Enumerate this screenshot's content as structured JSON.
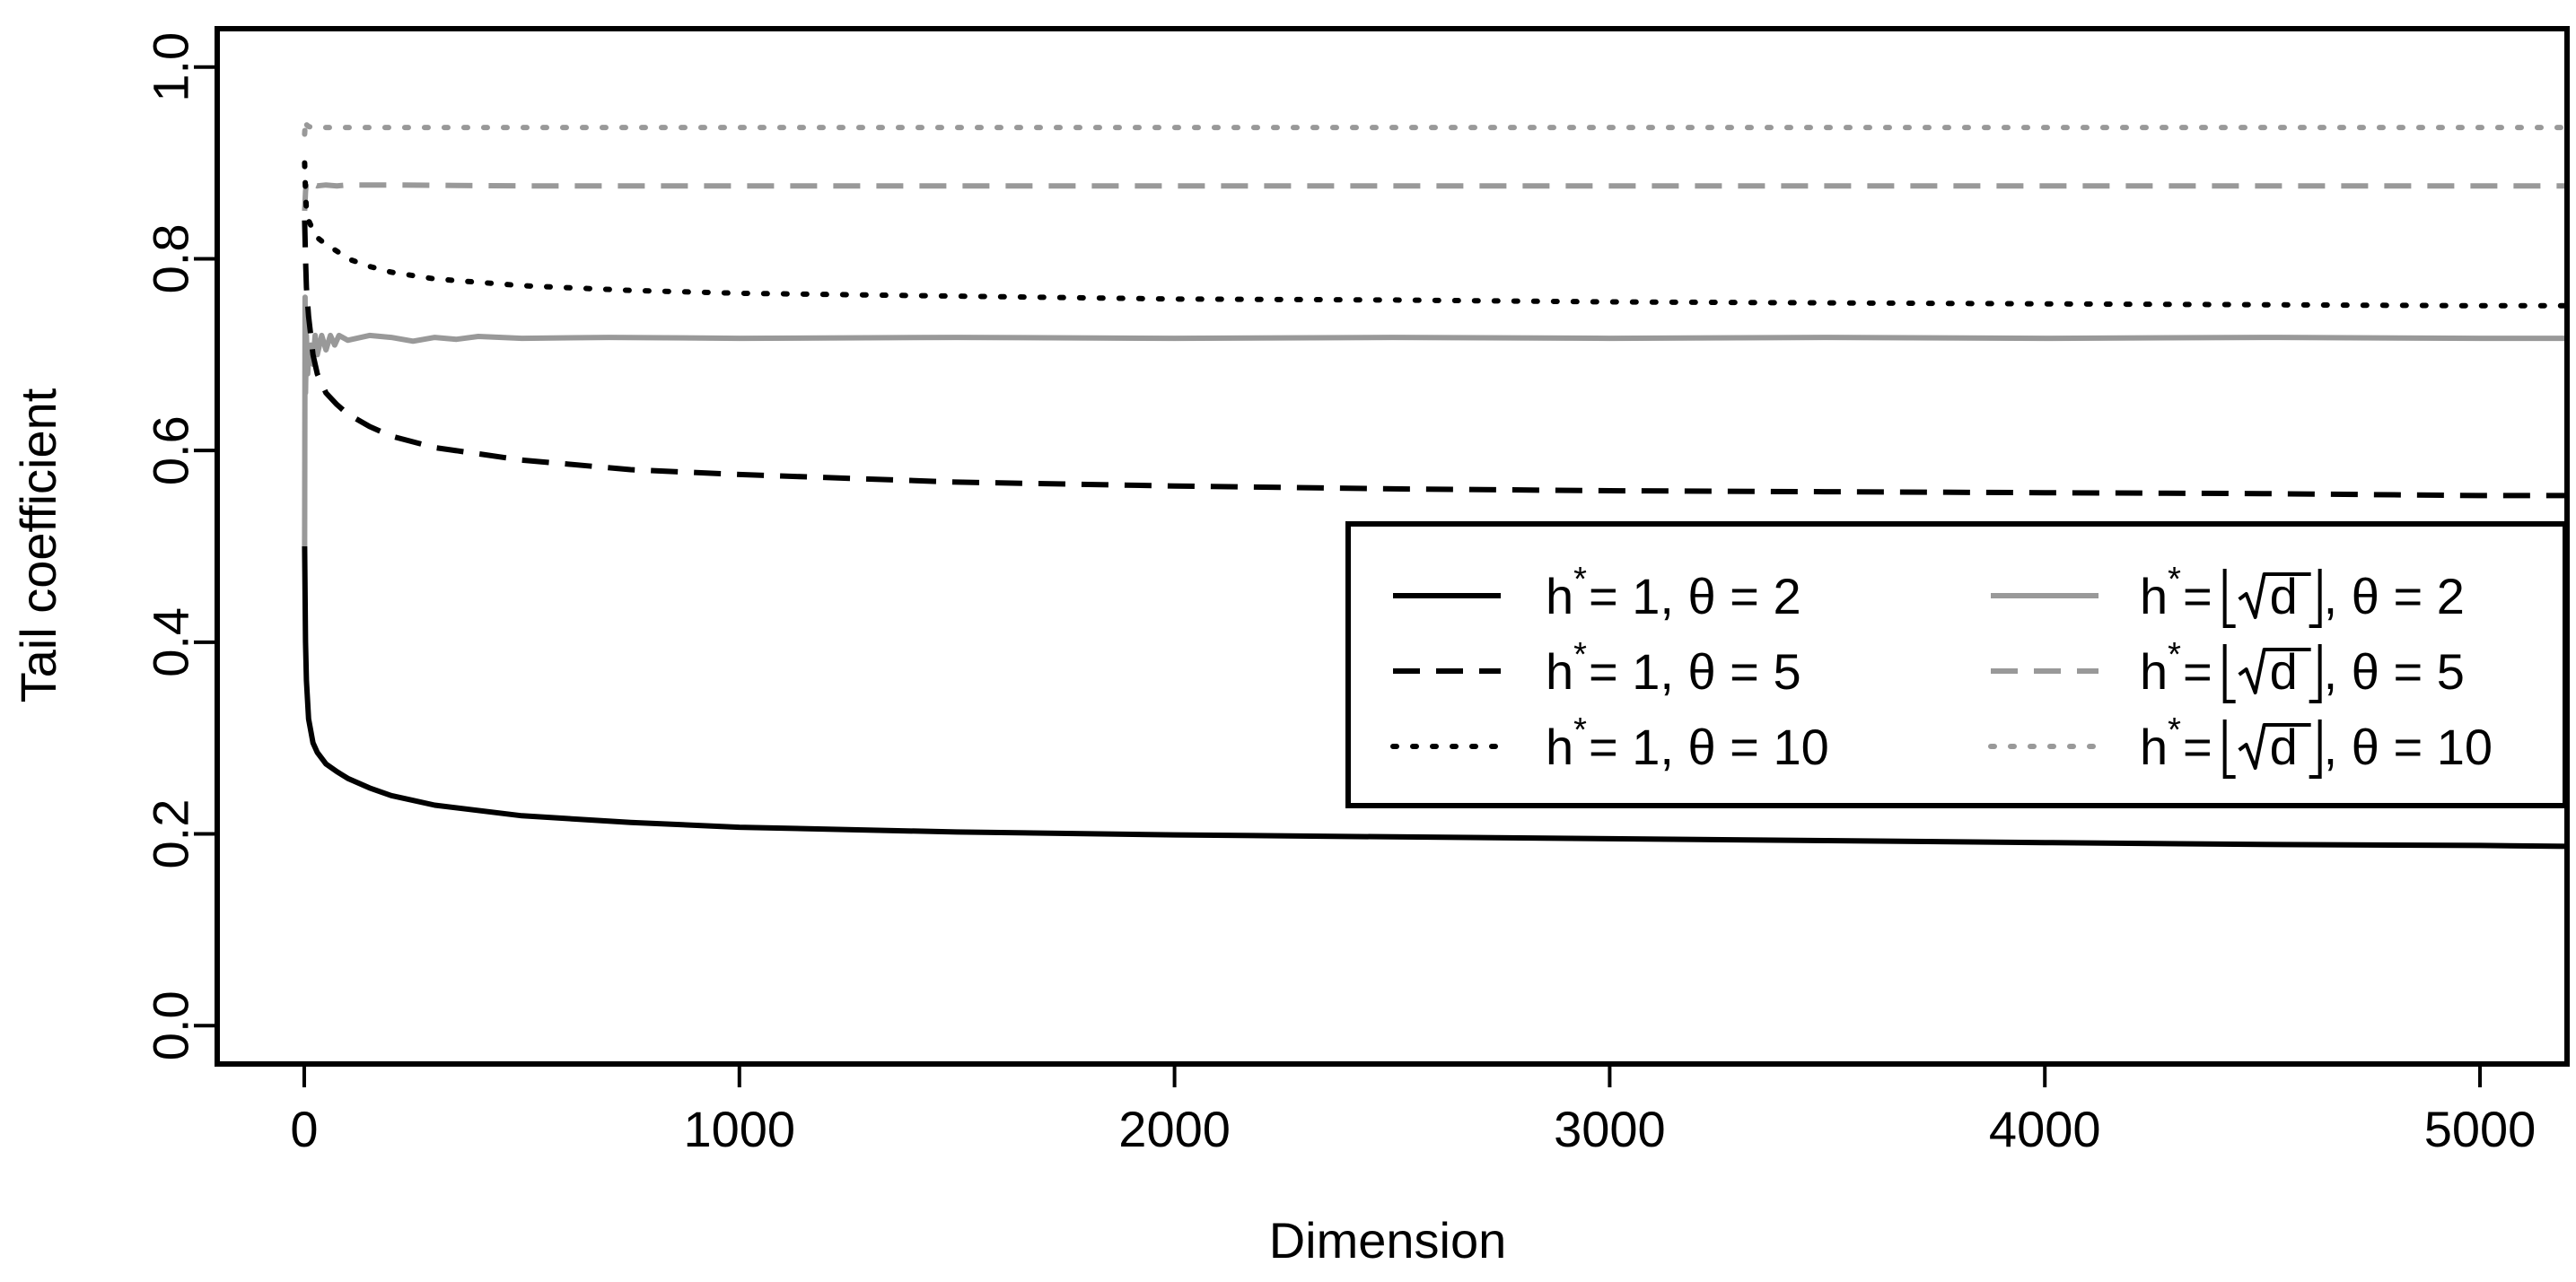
{
  "chart_data": {
    "type": "line",
    "title": "",
    "xlabel": "Dimension",
    "ylabel": "Tail coefficient",
    "xlim": [
      -200,
      5200
    ],
    "ylim": [
      -0.04,
      1.04
    ],
    "xticks": [
      0,
      1000,
      2000,
      3000,
      4000,
      5000
    ],
    "xtick_labels": [
      "0",
      "1000",
      "2000",
      "3000",
      "4000",
      "5000"
    ],
    "yticks": [
      0.0,
      0.2,
      0.4,
      0.6,
      0.8,
      1.0
    ],
    "ytick_labels": [
      "0.0",
      "0.2",
      "0.4",
      "0.6",
      "0.8",
      "1.0"
    ],
    "grid": false,
    "legend_placement": "right",
    "legend_columns": 2,
    "series": [
      {
        "name": "h* = 1, θ = 2",
        "label_parts": {
          "h": "h",
          "sup": "*",
          "eq": "= 1, θ = 2",
          "sqrt": false
        },
        "color": "#000000",
        "dash": "solid",
        "x": [
          1,
          3,
          5,
          10,
          20,
          30,
          50,
          75,
          100,
          150,
          200,
          300,
          500,
          750,
          1000,
          1500,
          2000,
          2500,
          3000,
          3500,
          4000,
          4500,
          5000,
          5200
        ],
        "y": [
          0.5,
          0.4,
          0.36,
          0.32,
          0.295,
          0.285,
          0.273,
          0.265,
          0.258,
          0.248,
          0.24,
          0.23,
          0.219,
          0.212,
          0.207,
          0.202,
          0.199,
          0.197,
          0.195,
          0.193,
          0.191,
          0.189,
          0.188,
          0.187
        ]
      },
      {
        "name": "h* = 1, θ = 5",
        "label_parts": {
          "h": "h",
          "sup": "*",
          "eq": "= 1, θ = 5",
          "sqrt": false
        },
        "color": "#000000",
        "dash": "dashed",
        "x": [
          1,
          3,
          5,
          10,
          20,
          30,
          50,
          75,
          100,
          150,
          200,
          300,
          500,
          750,
          1000,
          1500,
          2000,
          2500,
          3000,
          3500,
          4000,
          4500,
          5000,
          5200
        ],
        "y": [
          0.84,
          0.8,
          0.77,
          0.74,
          0.7,
          0.68,
          0.66,
          0.648,
          0.638,
          0.625,
          0.615,
          0.603,
          0.59,
          0.58,
          0.575,
          0.567,
          0.563,
          0.56,
          0.558,
          0.557,
          0.556,
          0.555,
          0.553,
          0.553
        ]
      },
      {
        "name": "h* = 1, θ = 10",
        "label_parts": {
          "h": "h",
          "sup": "*",
          "eq": "= 1, θ = 10",
          "sqrt": false
        },
        "color": "#000000",
        "dash": "dotted",
        "x": [
          1,
          3,
          5,
          10,
          20,
          30,
          50,
          75,
          100,
          150,
          200,
          300,
          500,
          750,
          1000,
          1500,
          2000,
          2500,
          3000,
          3500,
          4000,
          4500,
          5000,
          5200
        ],
        "y": [
          0.9,
          0.87,
          0.85,
          0.84,
          0.83,
          0.822,
          0.815,
          0.808,
          0.8,
          0.792,
          0.786,
          0.779,
          0.772,
          0.767,
          0.764,
          0.761,
          0.758,
          0.757,
          0.755,
          0.754,
          0.753,
          0.752,
          0.751,
          0.751
        ]
      },
      {
        "name": "h* = ⌊√d⌋, θ = 2",
        "label_parts": {
          "h": "h",
          "sup": "*",
          "eq": "=",
          "sqrt": true,
          "tail": ", θ = 2"
        },
        "color": "#999999",
        "dash": "solid",
        "x": [
          1,
          2,
          3,
          5,
          8,
          10,
          15,
          20,
          25,
          30,
          40,
          50,
          60,
          70,
          80,
          100,
          150,
          200,
          250,
          300,
          350,
          400,
          500,
          700,
          1000,
          1500,
          2000,
          2500,
          3000,
          3500,
          4000,
          4500,
          5000,
          5200
        ],
        "y": [
          0.5,
          0.76,
          0.66,
          0.72,
          0.68,
          0.7,
          0.71,
          0.69,
          0.72,
          0.7,
          0.72,
          0.705,
          0.72,
          0.71,
          0.72,
          0.715,
          0.72,
          0.718,
          0.714,
          0.718,
          0.716,
          0.719,
          0.717,
          0.718,
          0.717,
          0.718,
          0.717,
          0.718,
          0.717,
          0.718,
          0.717,
          0.718,
          0.717,
          0.717
        ]
      },
      {
        "name": "h* = ⌊√d⌋, θ = 5",
        "label_parts": {
          "h": "h",
          "sup": "*",
          "eq": "=",
          "sqrt": true,
          "tail": ", θ = 5"
        },
        "color": "#999999",
        "dash": "dashed",
        "x": [
          1,
          3,
          5,
          10,
          20,
          30,
          50,
          75,
          100,
          200,
          500,
          1000,
          2000,
          3000,
          4000,
          5000,
          5200
        ],
        "y": [
          0.85,
          0.87,
          0.88,
          0.875,
          0.878,
          0.876,
          0.877,
          0.876,
          0.877,
          0.877,
          0.876,
          0.876,
          0.876,
          0.876,
          0.876,
          0.876,
          0.876
        ]
      },
      {
        "name": "h* = ⌊√d⌋, θ = 10",
        "label_parts": {
          "h": "h",
          "sup": "*",
          "eq": "=",
          "sqrt": true,
          "tail": ", θ = 10"
        },
        "color": "#999999",
        "dash": "dotted",
        "x": [
          1,
          3,
          5,
          10,
          20,
          50,
          100,
          500,
          1000,
          2000,
          3000,
          4000,
          5000,
          5200
        ],
        "y": [
          0.93,
          0.945,
          0.94,
          0.938,
          0.937,
          0.937,
          0.937,
          0.937,
          0.937,
          0.937,
          0.937,
          0.937,
          0.937,
          0.937
        ]
      }
    ]
  }
}
